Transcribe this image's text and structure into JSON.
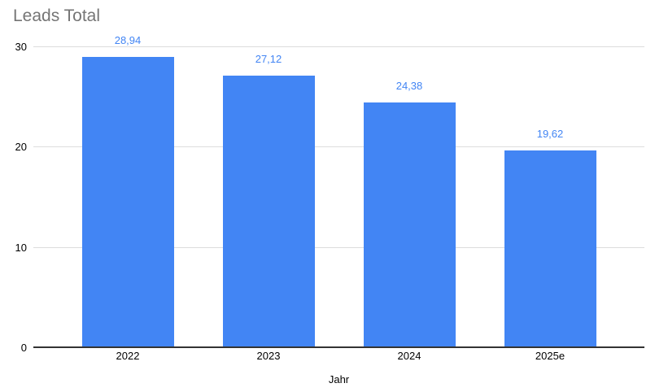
{
  "chart_data": {
    "type": "bar",
    "title": "Leads Total",
    "xlabel": "Jahr",
    "ylabel": "",
    "categories": [
      "2022",
      "2023",
      "2024",
      "2025e"
    ],
    "values": [
      28.94,
      27.12,
      24.38,
      19.62
    ],
    "value_labels": [
      "28,94",
      "27,12",
      "24,38",
      "19,62"
    ],
    "ylim": [
      0,
      30
    ],
    "yticks": [
      0,
      10,
      20,
      30
    ],
    "ytick_labels": [
      "0",
      "10",
      "20",
      "30"
    ],
    "grid": true,
    "legend_position": "none",
    "colors": {
      "bar": "#4285F4",
      "data_label": "#4285F4",
      "title_text": "#757575",
      "axis_text": "#000000",
      "gridline": "#DDDDDD",
      "baseline": "#333333",
      "background": "#FFFFFF"
    }
  }
}
